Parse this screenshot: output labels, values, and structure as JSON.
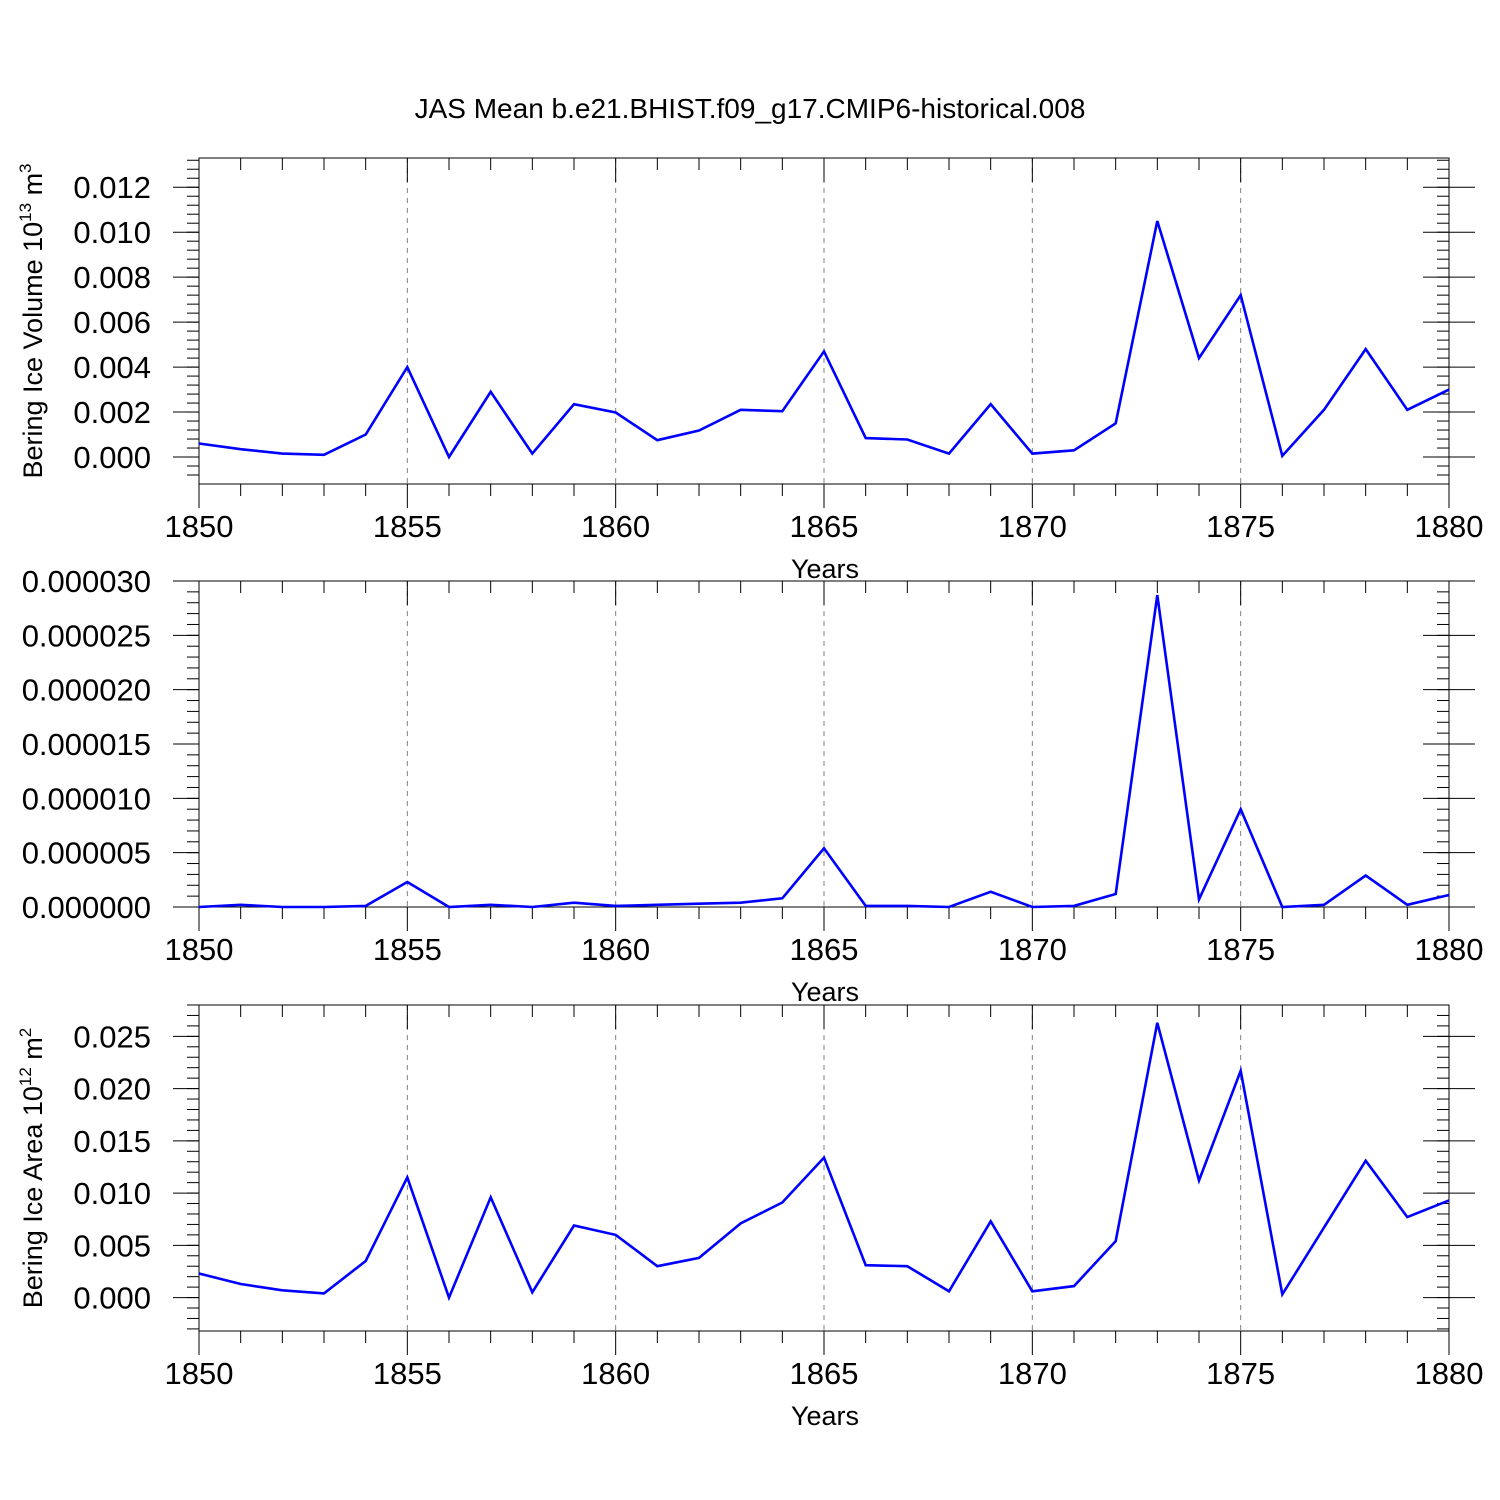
{
  "figure": {
    "title": "JAS Mean b.e21.BHIST.f09_g17.CMIP6-historical.008",
    "line_color": "#0000ff",
    "grid_color": "#808080",
    "axis_color": "#000000"
  },
  "chart_data": [
    {
      "type": "line",
      "name": "volume",
      "title": "JAS Mean b.e21.BHIST.f09_g17.CMIP6-historical.008",
      "xlabel": "Years",
      "ylabel": "Bering Ice Volume 10",
      "ylabel_sup": "13",
      "ylabel_unit": " m",
      "ylabel_unit_sup": "3",
      "xlim": [
        1850,
        1880
      ],
      "ylim": [
        -0.0012,
        0.0133
      ],
      "xticks": [
        1850,
        1855,
        1860,
        1865,
        1870,
        1875,
        1880
      ],
      "xtick_labels": [
        "1850",
        "1855",
        "1860",
        "1865",
        "1870",
        "1875",
        "1880"
      ],
      "yticks": [
        0,
        0.002,
        0.004,
        0.006,
        0.008,
        0.01,
        0.012
      ],
      "ytick_labels": [
        "0.000",
        "0.002",
        "0.004",
        "0.006",
        "0.008",
        "0.010",
        "0.012"
      ],
      "grid": "vertical dashed at major x ticks",
      "series": [
        {
          "name": "Bering Ice Volume",
          "x": [
            1850,
            1851,
            1852,
            1853,
            1854,
            1855,
            1856,
            1857,
            1858,
            1859,
            1860,
            1861,
            1862,
            1863,
            1864,
            1865,
            1866,
            1867,
            1868,
            1869,
            1870,
            1871,
            1872,
            1873,
            1874,
            1875,
            1876,
            1877,
            1878,
            1879,
            1880
          ],
          "values": [
            0.0006,
            0.00035,
            0.00015,
            0.0001,
            0.001,
            0.004,
            0.0,
            0.0029,
            0.00015,
            0.00235,
            0.00198,
            0.00075,
            0.00118,
            0.0021,
            0.00204,
            0.0047,
            0.00084,
            0.00078,
            0.00015,
            0.00235,
            0.00015,
            0.0003,
            0.0015,
            0.0105,
            0.0044,
            0.0072,
            5e-05,
            0.0021,
            0.0048,
            0.0021,
            0.003
          ]
        }
      ]
    },
    {
      "type": "line",
      "name": "middle",
      "xlabel": "Years",
      "ylabel": "",
      "xlim": [
        1850,
        1880
      ],
      "ylim": [
        0,
        3e-05
      ],
      "xticks": [
        1850,
        1855,
        1860,
        1865,
        1870,
        1875,
        1880
      ],
      "xtick_labels": [
        "1850",
        "1855",
        "1860",
        "1865",
        "1870",
        "1875",
        "1880"
      ],
      "yticks": [
        0,
        5e-06,
        1e-05,
        1.5e-05,
        2e-05,
        2.5e-05,
        3e-05
      ],
      "ytick_labels": [
        "0.000000",
        "0.000005",
        "0.000010",
        "0.000015",
        "0.000020",
        "0.000025",
        "0.000030"
      ],
      "grid": "vertical dashed at major x ticks",
      "series": [
        {
          "name": "series",
          "x": [
            1850,
            1851,
            1852,
            1853,
            1854,
            1855,
            1856,
            1857,
            1858,
            1859,
            1860,
            1861,
            1862,
            1863,
            1864,
            1865,
            1866,
            1867,
            1868,
            1869,
            1870,
            1871,
            1872,
            1873,
            1874,
            1875,
            1876,
            1877,
            1878,
            1879,
            1880
          ],
          "values": [
            0.0,
            2e-07,
            0.0,
            0.0,
            1e-07,
            2.3e-06,
            0.0,
            2e-07,
            0.0,
            4e-07,
            1e-07,
            2e-07,
            3e-07,
            4e-07,
            8e-07,
            5.4e-06,
            1e-07,
            1e-07,
            0.0,
            1.4e-06,
            0.0,
            1e-07,
            1.2e-06,
            2.87e-05,
            7e-07,
            9e-06,
            0.0,
            2e-07,
            2.9e-06,
            2e-07,
            1.1e-06
          ]
        }
      ]
    },
    {
      "type": "line",
      "name": "area",
      "xlabel": "Years",
      "ylabel": "Bering Ice Area 10",
      "ylabel_sup": "12",
      "ylabel_unit": " m",
      "ylabel_unit_sup": "2",
      "xlim": [
        1850,
        1880
      ],
      "ylim": [
        -0.0032,
        0.028
      ],
      "xticks": [
        1850,
        1855,
        1860,
        1865,
        1870,
        1875,
        1880
      ],
      "xtick_labels": [
        "1850",
        "1855",
        "1860",
        "1865",
        "1870",
        "1875",
        "1880"
      ],
      "yticks": [
        0,
        0.005,
        0.01,
        0.015,
        0.02,
        0.025
      ],
      "ytick_labels": [
        "0.000",
        "0.005",
        "0.010",
        "0.015",
        "0.020",
        "0.025"
      ],
      "grid": "vertical dashed at major x ticks",
      "series": [
        {
          "name": "Bering Ice Area",
          "x": [
            1850,
            1851,
            1852,
            1853,
            1854,
            1855,
            1856,
            1857,
            1858,
            1859,
            1860,
            1861,
            1862,
            1863,
            1864,
            1865,
            1866,
            1867,
            1868,
            1869,
            1870,
            1871,
            1872,
            1873,
            1874,
            1875,
            1876,
            1877,
            1878,
            1879,
            1880
          ],
          "values": [
            0.0023,
            0.0013,
            0.0007,
            0.0004,
            0.0035,
            0.0115,
            0.0,
            0.0096,
            0.0005,
            0.0069,
            0.006,
            0.003,
            0.0038,
            0.0071,
            0.0091,
            0.0134,
            0.0031,
            0.003,
            0.0006,
            0.0073,
            0.0006,
            0.0011,
            0.0054,
            0.0263,
            0.0112,
            0.0217,
            0.0003,
            0.0067,
            0.0131,
            0.0077,
            0.0093
          ]
        }
      ]
    }
  ]
}
